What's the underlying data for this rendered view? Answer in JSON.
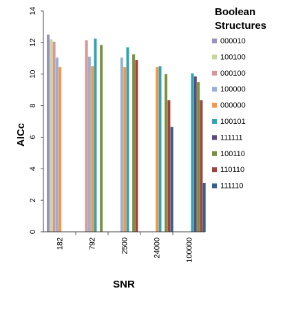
{
  "chart_data": {
    "type": "bar",
    "xlabel": "SNR",
    "ylabel": "AICc",
    "ylim": [
      0,
      14
    ],
    "yticks": [
      0,
      2,
      4,
      6,
      8,
      10,
      12,
      14
    ],
    "grid": false,
    "legend_position": "right",
    "legend_title": "Boolean Structures",
    "categories": [
      "182",
      "792",
      "2500",
      "24000",
      "100000"
    ],
    "series": [
      {
        "name": "000010",
        "color": "#9b8fc4",
        "values": [
          12.5,
          null,
          null,
          null,
          null
        ]
      },
      {
        "name": "100100",
        "color": "#c6d89a",
        "values": [
          12.2,
          null,
          null,
          null,
          null
        ]
      },
      {
        "name": "000100",
        "color": "#d99694",
        "values": [
          12.05,
          12.15,
          null,
          null,
          null
        ]
      },
      {
        "name": "100000",
        "color": "#95b3d7",
        "values": [
          11.05,
          11.1,
          11.05,
          null,
          null
        ]
      },
      {
        "name": "000000",
        "color": "#f79646",
        "values": [
          10.45,
          10.5,
          10.45,
          10.45,
          null
        ]
      },
      {
        "name": "100101",
        "color": "#31a4b4",
        "values": [
          null,
          12.25,
          11.7,
          10.5,
          10.05
        ]
      },
      {
        "name": "111111",
        "color": "#604a7b",
        "values": [
          null,
          null,
          null,
          null,
          9.85
        ]
      },
      {
        "name": "100110",
        "color": "#77933c",
        "values": [
          null,
          11.85,
          11.25,
          10.0,
          9.5
        ]
      },
      {
        "name": "110110",
        "color": "#a5413c",
        "values": [
          null,
          null,
          10.9,
          8.35,
          8.35
        ]
      },
      {
        "name": "111110",
        "color": "#366092",
        "values": [
          null,
          null,
          null,
          6.65,
          3.1
        ]
      }
    ]
  }
}
